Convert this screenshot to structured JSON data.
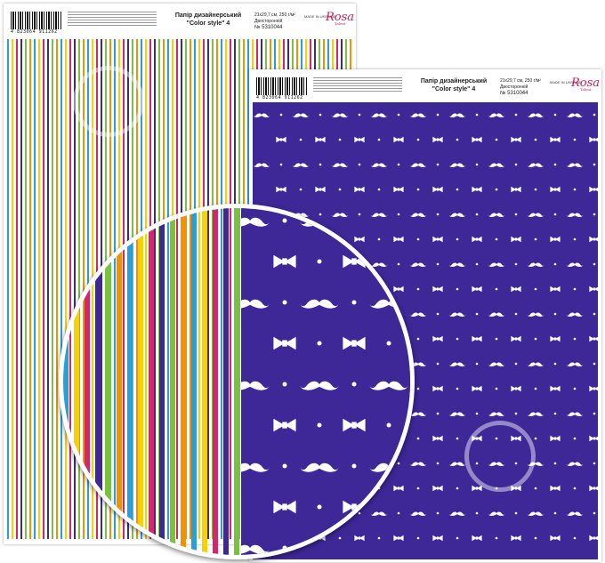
{
  "product": {
    "title_line1": "Папір дизайнерський",
    "title_line2": "\"Color style\" 4",
    "size_weight": "21х29,7 см, 250 г/м²",
    "sides": "Двосторонній",
    "article": "№ 5310044",
    "barcode_number": "4 823064 911262",
    "made_in": "MADE IN UKRAINE",
    "logo": "Rosa",
    "logo_sub": "Talent"
  },
  "colors": {
    "navy": "#3e2797",
    "stripes": [
      "#2a9fd6",
      "#f5d200",
      "#d4266e",
      "#3e2797",
      "#7ac142",
      "#f39200"
    ]
  }
}
